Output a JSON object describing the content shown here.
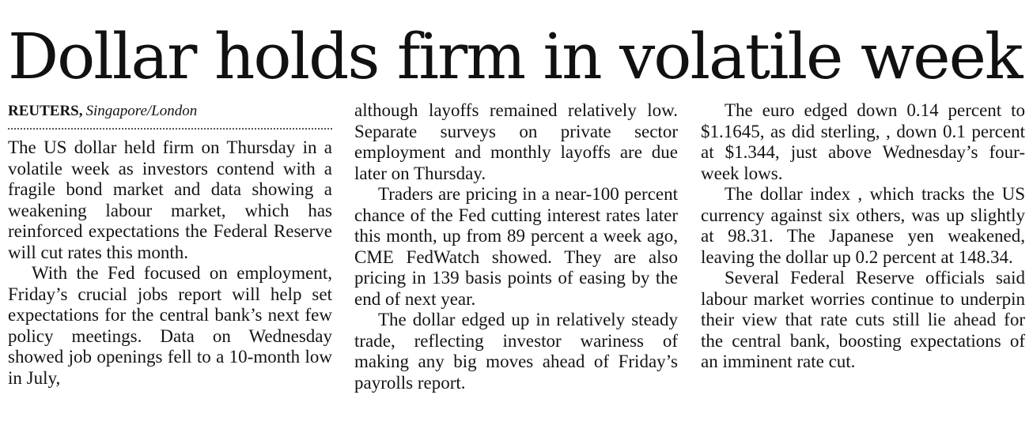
{
  "article": {
    "headline": "Dollar holds firm in volatile week",
    "byline": {
      "agency": "REUTERS,",
      "location": "Singapore/London"
    },
    "paragraphs": [
      "The US dollar held firm on Thursday in a volatile week as investors contend with a fragile bond market and data showing a weakening labour market, which has reinforced expectations the Federal Reserve will cut rates this month.",
      "With the Fed focused on employment, Friday’s crucial jobs report will help set expectations for the central bank’s next few policy meetings. Data on Wednesday showed job openings fell to a 10-month low in July,",
      "although layoffs remained relatively low. Separate surveys on private sector employment and monthly layoffs are due later on Thursday.",
      "Traders are pricing in a near-100 percent chance of the Fed cutting interest rates later this month, up from 89 percent a week ago, CME FedWatch showed. They are also pricing in 139 basis points of easing by the end of next year.",
      "The dollar edged up in relatively steady trade, reflecting investor wariness of making any big moves ahead of Friday’s payrolls report.",
      "The euro edged down 0.14 percent to $1.1645, as did sterling, , down 0.1 percent at $1.344, just above Wednesday’s four-week lows.",
      "The dollar index , which tracks the US currency against six others, was up slightly at 98.31. The Japanese yen weakened, leaving the dollar up 0.2 percent at 148.34.",
      "Several Federal Reserve officials said labour market worries continue to underpin their view that rate cuts still lie ahead for the central bank, boosting expectations of an imminent rate cut."
    ]
  }
}
